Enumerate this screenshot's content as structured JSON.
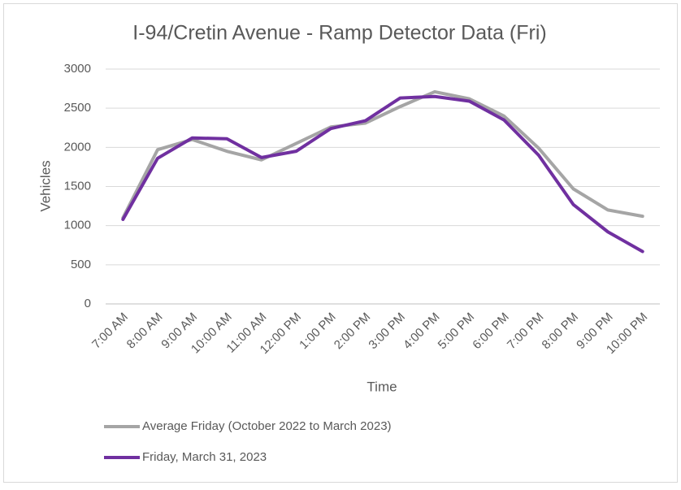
{
  "chart_data": {
    "type": "line",
    "title": "I-94/Cretin Avenue - Ramp Detector Data (Fri)",
    "x_label": "Time",
    "y_label": "Vehicles",
    "categories": [
      "7:00 AM",
      "8:00 AM",
      "9:00 AM",
      "10:00 AM",
      "11:00 AM",
      "12:00 PM",
      "1:00 PM",
      "2:00 PM",
      "3:00 PM",
      "4:00 PM",
      "5:00 PM",
      "6:00 PM",
      "7:00 PM",
      "8:00 PM",
      "9:00 PM",
      "10:00 PM"
    ],
    "series": [
      {
        "name": "Average Friday (October 2022 to March 2023)",
        "color": "#a5a5a5",
        "values": [
          1100,
          1970,
          2100,
          1950,
          1840,
          2050,
          2260,
          2310,
          2520,
          2710,
          2620,
          2400,
          1990,
          1470,
          1200,
          1120
        ]
      },
      {
        "name": "Friday, March 31, 2023",
        "color": "#7030a0",
        "values": [
          1080,
          1860,
          2120,
          2110,
          1870,
          1950,
          2240,
          2340,
          2630,
          2650,
          2590,
          2350,
          1900,
          1270,
          920,
          670
        ]
      }
    ],
    "ylim": [
      0,
      3000
    ],
    "yticks": [
      0,
      500,
      1000,
      1500,
      2000,
      2500,
      3000
    ],
    "grid": true,
    "legend": "bottom"
  }
}
